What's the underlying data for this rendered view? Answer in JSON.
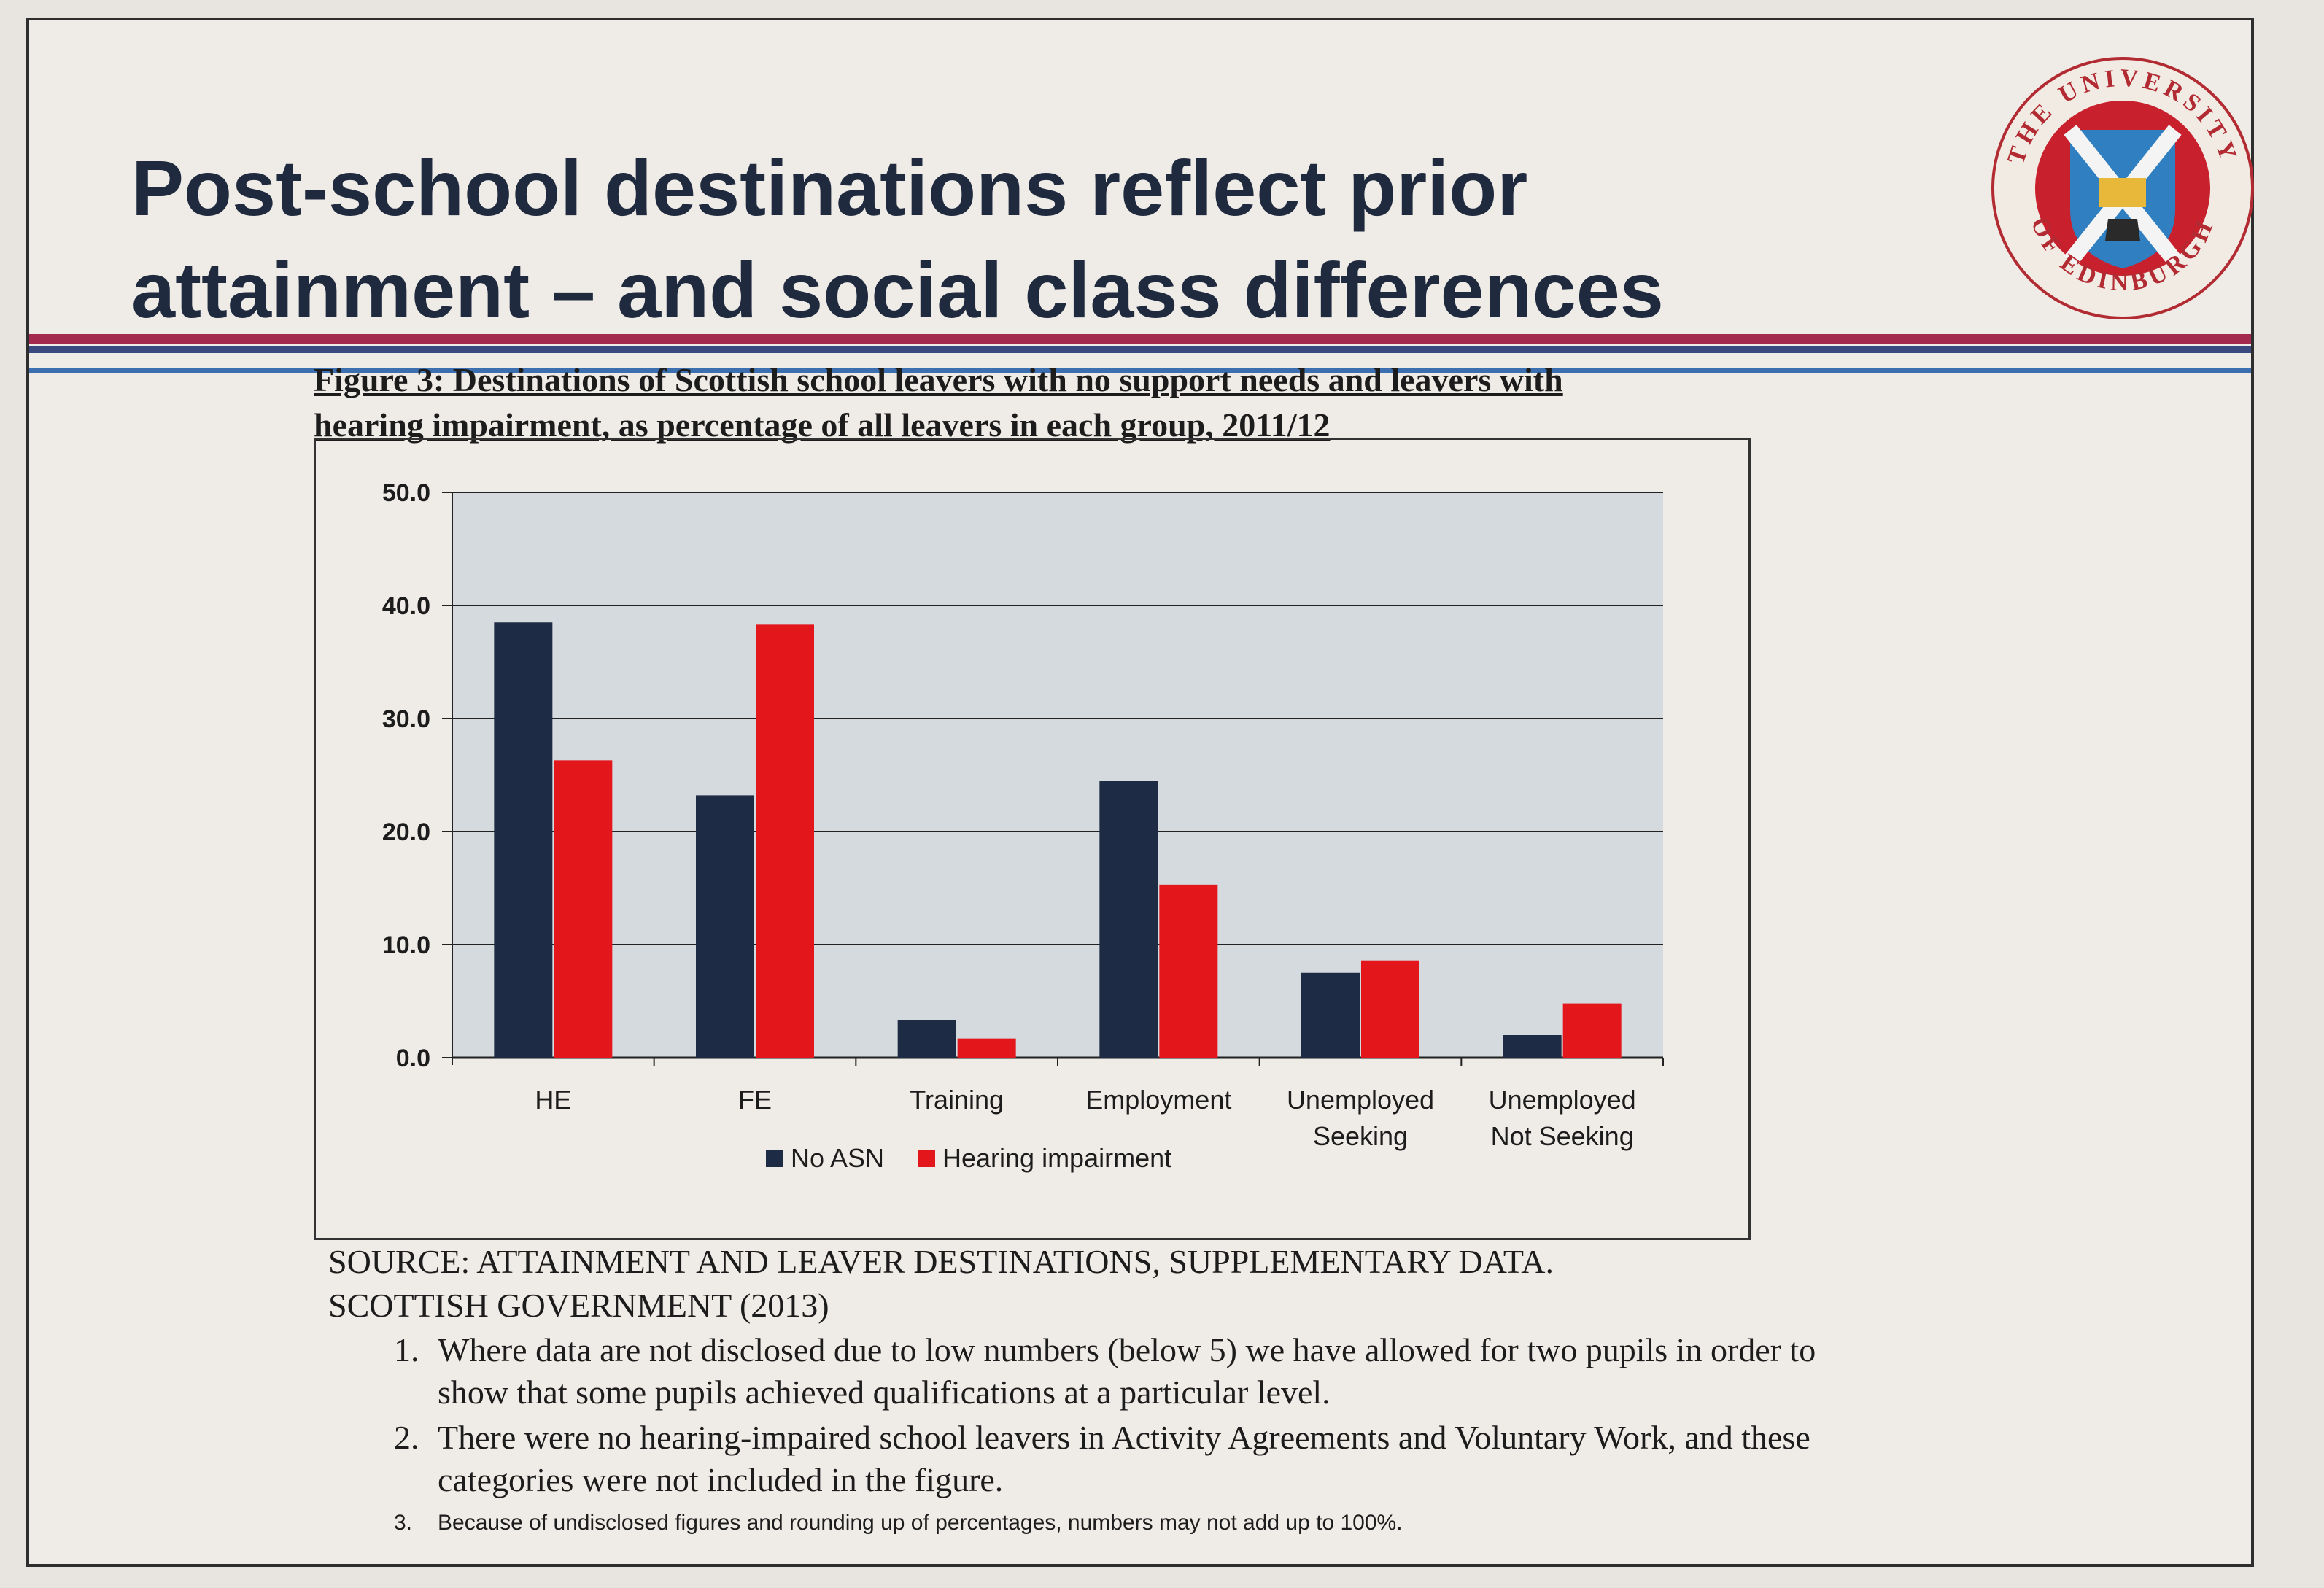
{
  "slide": {
    "title_line1": "Post-school destinations reflect prior",
    "title_line2": "attainment – and social class differences",
    "logo": {
      "text_top": "THE UNIVERSITY",
      "text_bottom": "OF EDINBURGH",
      "colors": {
        "ring": "#f1ebe3",
        "inner_red": "#c8202c",
        "shield_blue": "#2f7fc1",
        "book": "#e7b83a"
      }
    },
    "rule_colors": [
      "#a32a4e",
      "#3a4a80",
      "#3b6fb0"
    ]
  },
  "figure": {
    "caption_line1": "Figure 3: Destinations of Scottish school leavers with no support needs and leavers with",
    "caption_line2": "hearing impairment, as percentage of all leavers in each group, 2011/12"
  },
  "chart_data": {
    "type": "bar",
    "title": "",
    "xlabel": "",
    "ylabel": "",
    "categories": [
      "HE",
      "FE",
      "Training",
      "Employment",
      "Unemployed Seeking",
      "Unemployed Not Seeking"
    ],
    "category_lines": [
      [
        "HE"
      ],
      [
        "FE"
      ],
      [
        "Training"
      ],
      [
        "Employment"
      ],
      [
        "Unemployed",
        "Seeking"
      ],
      [
        "Unemployed",
        "Not Seeking"
      ]
    ],
    "series": [
      {
        "name": "No ASN",
        "color": "#1e2b45",
        "values": [
          38.5,
          23.2,
          3.3,
          24.5,
          7.5,
          2.0
        ]
      },
      {
        "name": "Hearing impairment",
        "color": "#e3161c",
        "values": [
          26.3,
          38.3,
          1.7,
          15.3,
          8.6,
          4.8
        ]
      }
    ],
    "ylim": [
      0,
      50
    ],
    "yticks": [
      "0.0",
      "10.0",
      "20.0",
      "30.0",
      "40.0",
      "50.0"
    ],
    "grid": true,
    "legend_position": "bottom",
    "plot_background": "#d4dade"
  },
  "source": {
    "line1": "SOURCE: ATTAINMENT AND LEAVER DESTINATIONS, SUPPLEMENTARY DATA.",
    "line2": "SCOTTISH GOVERNMENT (2013)"
  },
  "notes": [
    {
      "num": "1.",
      "text": "Where data are not disclosed due to low numbers (below 5) we have allowed for two pupils in order to show that some pupils achieved qualifications at a particular level."
    },
    {
      "num": "2.",
      "text": "There were no hearing-impaired school leavers in Activity Agreements and Voluntary Work, and these categories were not included in the figure."
    },
    {
      "num": "3.",
      "text": "Because of undisclosed figures and rounding up of percentages, numbers may not add up to 100%."
    }
  ]
}
